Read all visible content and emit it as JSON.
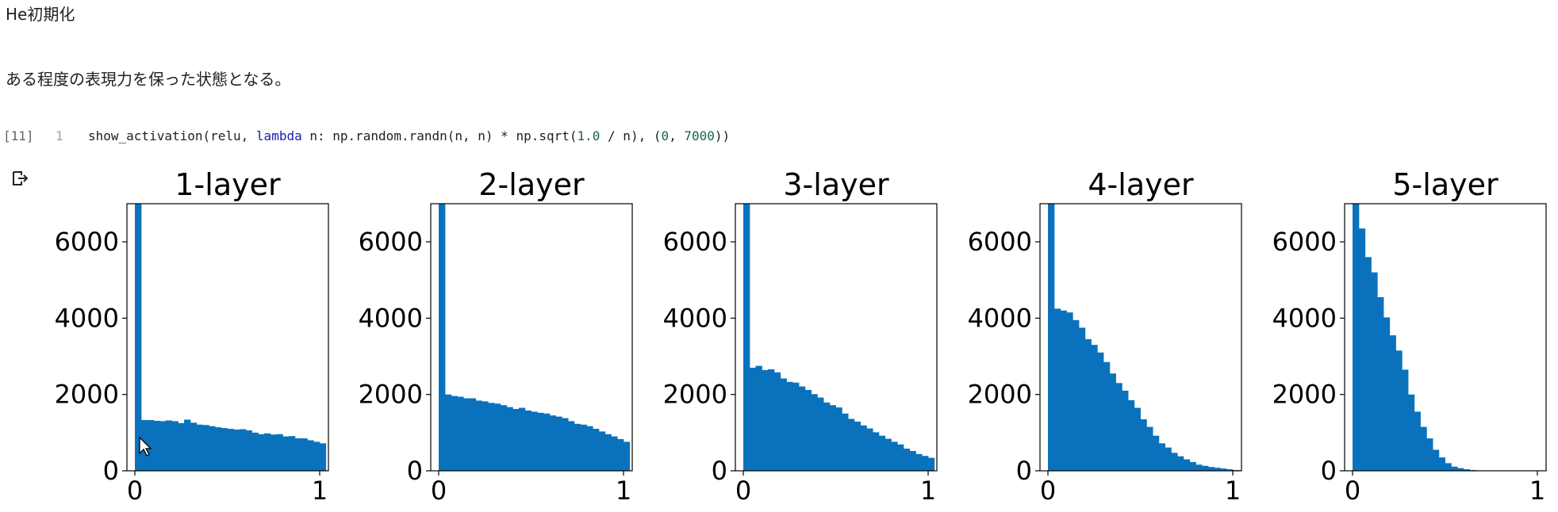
{
  "heading": "He初期化",
  "description": "ある程度の表現力を保った状態となる。",
  "cell": {
    "exec_count": "[11]",
    "line_number": "1",
    "code_parts": {
      "p1": "show_activation(relu, ",
      "kw": "lambda",
      "p2": " n: np.random.randn(n, n) * np.sqrt(",
      "n1": "1.0",
      "p3": " / n), (",
      "n2": "0",
      "p4": ", ",
      "n3": "7000",
      "p5": "))"
    }
  },
  "output_icon": "output-arrow-icon",
  "colors": {
    "bar": "#0a72bd",
    "axis": "#000000"
  },
  "chart_data": [
    {
      "type": "bar",
      "title": "1-layer",
      "xlim": [
        0,
        1
      ],
      "ylim": [
        0,
        7000
      ],
      "xticks": [
        0,
        1
      ],
      "yticks": [
        0,
        2000,
        4000,
        6000
      ],
      "bin_edges_start": 0,
      "bin_width": 0.0333,
      "values": [
        7000,
        1330,
        1330,
        1310,
        1300,
        1320,
        1300,
        1250,
        1340,
        1260,
        1210,
        1200,
        1170,
        1140,
        1120,
        1100,
        1080,
        1090,
        1060,
        1000,
        960,
        980,
        950,
        960,
        900,
        910,
        850,
        850,
        800,
        760,
        720
      ]
    },
    {
      "type": "bar",
      "title": "2-layer",
      "xlim": [
        0,
        1
      ],
      "ylim": [
        0,
        7000
      ],
      "xticks": [
        0,
        1
      ],
      "yticks": [
        0,
        2000,
        4000,
        6000
      ],
      "bin_edges_start": 0,
      "bin_width": 0.0333,
      "values": [
        7000,
        2000,
        1960,
        1940,
        1900,
        1900,
        1840,
        1820,
        1780,
        1760,
        1720,
        1670,
        1620,
        1650,
        1580,
        1550,
        1520,
        1500,
        1450,
        1420,
        1380,
        1300,
        1230,
        1210,
        1170,
        1100,
        1030,
        960,
        900,
        830,
        760
      ]
    },
    {
      "type": "bar",
      "title": "3-layer",
      "xlim": [
        0,
        1
      ],
      "ylim": [
        0,
        7000
      ],
      "xticks": [
        0,
        1
      ],
      "yticks": [
        0,
        2000,
        4000,
        6000
      ],
      "bin_edges_start": 0,
      "bin_width": 0.0333,
      "values": [
        7000,
        2700,
        2750,
        2640,
        2660,
        2580,
        2420,
        2330,
        2310,
        2210,
        2120,
        2010,
        1920,
        1790,
        1720,
        1660,
        1500,
        1360,
        1290,
        1190,
        1110,
        1010,
        920,
        840,
        760,
        690,
        580,
        520,
        440,
        390,
        340
      ]
    },
    {
      "type": "bar",
      "title": "4-layer",
      "xlim": [
        0,
        1
      ],
      "ylim": [
        0,
        7000
      ],
      "xticks": [
        0,
        1
      ],
      "yticks": [
        0,
        2000,
        4000,
        6000
      ],
      "bin_edges_start": 0,
      "bin_width": 0.0333,
      "values": [
        7000,
        4250,
        4200,
        4150,
        3950,
        3750,
        3450,
        3300,
        3100,
        2850,
        2550,
        2300,
        2100,
        1850,
        1650,
        1350,
        1150,
        920,
        720,
        610,
        470,
        380,
        300,
        230,
        160,
        130,
        100,
        80,
        60,
        40,
        20
      ]
    },
    {
      "type": "bar",
      "title": "5-layer",
      "xlim": [
        0,
        1
      ],
      "ylim": [
        0,
        7000
      ],
      "xticks": [
        0,
        1
      ],
      "yticks": [
        0,
        2000,
        4000,
        6000
      ],
      "bin_edges_start": 0,
      "bin_width": 0.0333,
      "values": [
        7000,
        6350,
        5600,
        5200,
        4550,
        4020,
        3550,
        3150,
        2650,
        2000,
        1550,
        1150,
        850,
        550,
        350,
        200,
        110,
        70,
        40,
        20,
        10,
        5,
        0,
        0,
        0,
        0,
        0,
        0,
        0,
        0,
        0
      ]
    }
  ]
}
